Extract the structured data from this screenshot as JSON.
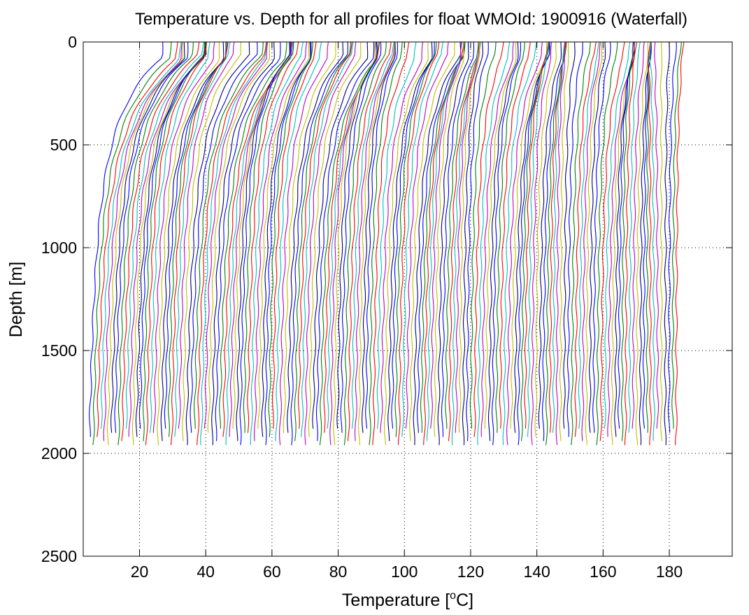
{
  "chart_data": {
    "type": "line",
    "title": "Temperature vs. Depth for all profiles for float WMOId: 1900916 (Waterfall)",
    "xlabel": "Temperature [",
    "xlabel_sup": "o",
    "xlabel_unit": "C]",
    "ylabel": "Depth [m]",
    "xlim": [
      3,
      199
    ],
    "ylim": [
      0,
      2500
    ],
    "y_reversed": true,
    "grid": true,
    "x_ticks": [
      20,
      40,
      60,
      80,
      100,
      120,
      140,
      160,
      180
    ],
    "x_tick_labels": [
      "20",
      "40",
      "60",
      "80",
      "100",
      "120",
      "140",
      "160",
      "180"
    ],
    "y_ticks": [
      0,
      500,
      1000,
      1500,
      2000,
      2500
    ],
    "y_tick_labels": [
      "0",
      "500",
      "1000",
      "1500",
      "2000",
      "2500"
    ],
    "waterfall_offset_per_profile": 1,
    "profile_count": 164,
    "first_profile_surface_temp": 27,
    "first_profile_bottom_temp": 3.8,
    "last_profile_surface_temp": 184,
    "last_profile_bottom_temp": 182,
    "max_depth": 1980,
    "series_colors": [
      "#0000ff",
      "#008000",
      "#ff0000",
      "#00bfbf",
      "#bf00bf",
      "#bfbf00",
      "#000080"
    ]
  }
}
